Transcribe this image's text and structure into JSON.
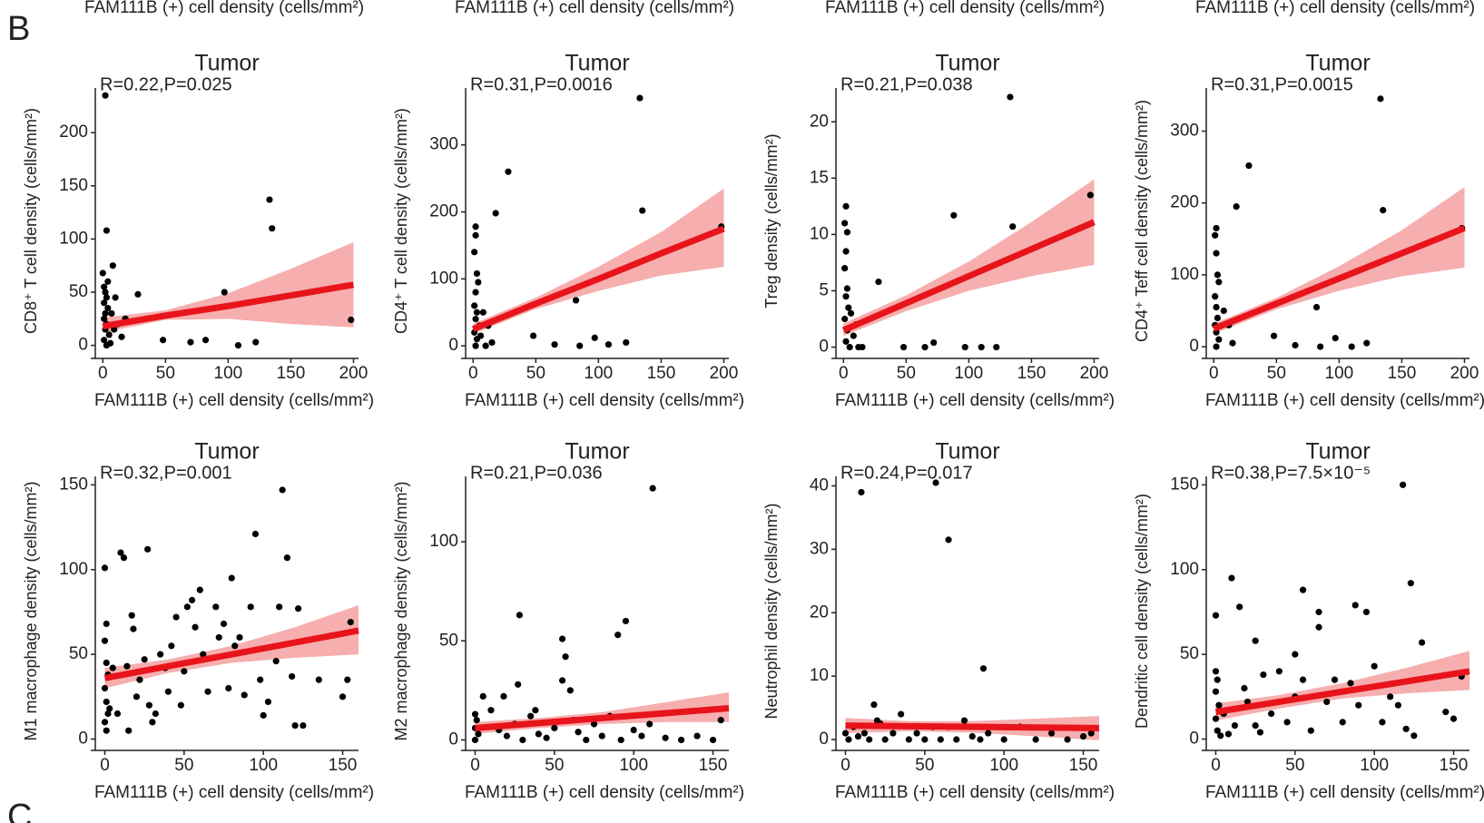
{
  "top_labels": [
    "FAM111B (+) cell density (cells/mm²)",
    "FAM111B (+) cell density (cells/mm²)",
    "FAM111B (+) cell density (cells/mm²)",
    "FAM111B (+) cell density (cells/mm²)"
  ],
  "panel_labels": [
    "B",
    "C"
  ],
  "chart_data": [
    {
      "type": "scatter",
      "title": "Tumor",
      "annotation": "R=0.22,P=0.025",
      "xlabel": "FAM111B (+) cell density (cells/mm²)",
      "ylabel": "CD8⁺ T cell density (cells/mm²)",
      "color": "#000000",
      "fit_color": "#e8141b",
      "band_color": "#f4a0a0",
      "x": [
        2,
        3,
        1,
        2,
        3,
        1,
        4,
        2,
        1,
        3,
        2,
        5,
        1,
        3,
        6,
        8,
        10,
        12,
        15,
        28,
        48,
        70,
        82,
        97,
        108,
        122,
        133,
        135,
        198,
        0,
        4,
        7,
        9,
        18
      ],
      "y": [
        235,
        108,
        55,
        50,
        45,
        40,
        35,
        30,
        25,
        20,
        15,
        10,
        5,
        0,
        2,
        75,
        45,
        20,
        8,
        48,
        5,
        3,
        5,
        50,
        0,
        3,
        137,
        110,
        24,
        68,
        60,
        30,
        15,
        25
      ],
      "fit": {
        "x": [
          0,
          50,
          100,
          150,
          200
        ],
        "y": [
          18,
          28,
          37,
          47,
          57
        ],
        "lower": [
          12,
          24,
          25,
          20,
          17
        ],
        "upper": [
          26,
          33,
          49,
          72,
          97
        ]
      },
      "xlim": [
        -6,
        204
      ],
      "ylim": [
        -8,
        242
      ],
      "xticks": [
        0,
        50,
        100,
        150,
        200
      ],
      "yticks": [
        0,
        50,
        100,
        150,
        200
      ]
    },
    {
      "type": "scatter",
      "title": "Tumor",
      "annotation": "R=0.31,P=0.0016",
      "xlabel": "FAM111B (+) cell density (cells/mm²)",
      "ylabel": "CD4⁺ T cell density (cells/mm²)",
      "color": "#000000",
      "fit_color": "#e8141b",
      "band_color": "#f4a0a0",
      "x": [
        133,
        28,
        18,
        135,
        198,
        2,
        2,
        1,
        3,
        4,
        2,
        1,
        3,
        2,
        5,
        1,
        3,
        2,
        8,
        12,
        15,
        6,
        48,
        65,
        82,
        97,
        108,
        122,
        85,
        10
      ],
      "y": [
        370,
        260,
        198,
        202,
        178,
        178,
        165,
        140,
        108,
        95,
        80,
        60,
        50,
        40,
        30,
        20,
        10,
        0,
        50,
        30,
        5,
        15,
        15,
        2,
        68,
        12,
        2,
        5,
        0,
        0
      ],
      "fit": {
        "x": [
          0,
          50,
          100,
          150,
          200
        ],
        "y": [
          25,
          63,
          100,
          138,
          175
        ],
        "lower": [
          18,
          55,
          82,
          105,
          118
        ],
        "upper": [
          33,
          72,
          118,
          170,
          235
        ]
      },
      "xlim": [
        -6,
        204
      ],
      "ylim": [
        -12,
        385
      ],
      "xticks": [
        0,
        50,
        100,
        150,
        200
      ],
      "yticks": [
        0,
        100,
        200,
        300
      ]
    },
    {
      "type": "scatter",
      "title": "Tumor",
      "annotation": "R=0.21,P=0.038",
      "xlabel": "FAM111B (+) cell density (cells/mm²)",
      "ylabel": "Treg density (cells/mm²)",
      "color": "#000000",
      "fit_color": "#e8141b",
      "band_color": "#f4a0a0",
      "x": [
        133,
        197,
        135,
        88,
        28,
        2,
        1,
        3,
        2,
        1,
        3,
        2,
        4,
        1,
        3,
        2,
        5,
        8,
        12,
        15,
        48,
        65,
        72,
        97,
        110,
        122,
        10,
        6
      ],
      "y": [
        22.2,
        13.5,
        10.7,
        11.7,
        5.8,
        12.5,
        11,
        10.2,
        8.5,
        7,
        5.2,
        4.5,
        3.5,
        2.5,
        1.5,
        0.5,
        0,
        1,
        0,
        0,
        0,
        0,
        0.4,
        0,
        0,
        0,
        2,
        3
      ],
      "fit": {
        "x": [
          0,
          50,
          100,
          150,
          200
        ],
        "y": [
          1.5,
          3.9,
          6.3,
          8.7,
          11.1
        ],
        "lower": [
          1.0,
          3.2,
          5.0,
          6.3,
          7.3
        ],
        "upper": [
          2.1,
          4.6,
          7.6,
          11.1,
          14.9
        ]
      },
      "xlim": [
        -6,
        204
      ],
      "ylim": [
        -0.6,
        23
      ],
      "xticks": [
        0,
        50,
        100,
        150,
        200
      ],
      "yticks": [
        0,
        5,
        10,
        15,
        20
      ]
    },
    {
      "type": "scatter",
      "title": "Tumor",
      "annotation": "R=0.31,P=0.0015",
      "xlabel": "FAM111B (+) cell density (cells/mm²)",
      "ylabel": "CD4⁺ Teff cell density (cells/mm²)",
      "color": "#000000",
      "fit_color": "#e8141b",
      "band_color": "#f4a0a0",
      "x": [
        133,
        28,
        18,
        135,
        198,
        2,
        1,
        2,
        3,
        4,
        1,
        2,
        3,
        1,
        2,
        4,
        2,
        8,
        12,
        15,
        48,
        65,
        82,
        97,
        110,
        122,
        85
      ],
      "y": [
        345,
        252,
        195,
        190,
        165,
        165,
        155,
        130,
        100,
        90,
        70,
        55,
        40,
        30,
        20,
        10,
        0,
        50,
        30,
        5,
        15,
        2,
        55,
        12,
        0,
        5,
        0
      ],
      "fit": {
        "x": [
          0,
          50,
          100,
          150,
          200
        ],
        "y": [
          25,
          60,
          95,
          130,
          165
        ],
        "lower": [
          18,
          52,
          78,
          98,
          110
        ],
        "upper": [
          32,
          68,
          112,
          162,
          222
        ]
      },
      "xlim": [
        -6,
        204
      ],
      "ylim": [
        -10,
        360
      ],
      "xticks": [
        0,
        50,
        100,
        150,
        200
      ],
      "yticks": [
        0,
        100,
        200,
        300
      ]
    },
    {
      "type": "scatter",
      "title": "Tumor",
      "annotation": "R=0.32,P=0.001",
      "xlabel": "FAM111B (+) cell density (cells/mm²)",
      "ylabel": "M1 macrophage density (cells/mm²)",
      "color": "#000000",
      "fit_color": "#e8141b",
      "band_color": "#f4a0a0",
      "x": [
        0,
        1,
        0,
        1,
        2,
        0,
        1,
        2,
        0,
        1,
        3,
        5,
        8,
        10,
        12,
        14,
        15,
        17,
        18,
        20,
        22,
        25,
        27,
        28,
        30,
        32,
        35,
        38,
        40,
        42,
        45,
        48,
        50,
        52,
        55,
        57,
        60,
        62,
        65,
        70,
        72,
        75,
        78,
        80,
        82,
        85,
        88,
        92,
        95,
        98,
        100,
        103,
        108,
        110,
        112,
        115,
        118,
        120,
        122,
        125,
        135,
        150,
        153,
        155
      ],
      "y": [
        101,
        68,
        58,
        45,
        38,
        30,
        22,
        15,
        10,
        5,
        18,
        42,
        15,
        110,
        107,
        43,
        5,
        73,
        65,
        25,
        35,
        47,
        112,
        20,
        10,
        15,
        50,
        42,
        28,
        55,
        72,
        20,
        40,
        78,
        82,
        66,
        88,
        50,
        28,
        78,
        60,
        68,
        30,
        95,
        55,
        60,
        26,
        78,
        121,
        35,
        14,
        22,
        46,
        78,
        147,
        107,
        37,
        8,
        77,
        8,
        35,
        25,
        35,
        69
      ],
      "fit": {
        "x": [
          0,
          40,
          80,
          120,
          160
        ],
        "y": [
          36,
          43,
          50,
          57,
          64
        ],
        "lower": [
          30,
          39,
          45,
          48,
          50
        ],
        "upper": [
          42,
          47,
          55,
          66,
          79
        ]
      },
      "xlim": [
        -6,
        160
      ],
      "ylim": [
        -4,
        155
      ],
      "xticks": [
        0,
        50,
        100,
        150
      ],
      "yticks": [
        0,
        50,
        100,
        150
      ]
    },
    {
      "type": "scatter",
      "title": "Tumor",
      "annotation": "R=0.21,P=0.036",
      "xlabel": "FAM111B (+) cell density (cells/mm²)",
      "ylabel": "M2 macrophage density (cells/mm²)",
      "color": "#000000",
      "fit_color": "#e8141b",
      "band_color": "#f4a0a0",
      "x": [
        112,
        28,
        95,
        90,
        55,
        57,
        55,
        27,
        60,
        0,
        1,
        0,
        2,
        0,
        5,
        10,
        15,
        20,
        25,
        30,
        35,
        40,
        45,
        50,
        65,
        70,
        75,
        80,
        85,
        92,
        100,
        105,
        110,
        120,
        130,
        140,
        150,
        155,
        18,
        38,
        62
      ],
      "y": [
        127,
        63,
        60,
        53,
        51,
        42,
        30,
        28,
        25,
        13,
        10,
        6,
        3,
        0,
        22,
        15,
        5,
        2,
        8,
        0,
        12,
        3,
        1,
        6,
        4,
        0,
        8,
        2,
        12,
        0,
        5,
        2,
        8,
        1,
        0,
        2,
        0,
        10,
        22,
        15,
        10
      ],
      "fit": {
        "x": [
          0,
          40,
          80,
          120,
          160
        ],
        "y": [
          6,
          8.5,
          11,
          13.5,
          16
        ],
        "lower": [
          3,
          6,
          8,
          9,
          9
        ],
        "upper": [
          9,
          11,
          14,
          19,
          24
        ]
      },
      "xlim": [
        -6,
        160
      ],
      "ylim": [
        -3,
        133
      ],
      "xticks": [
        0,
        50,
        100,
        150
      ],
      "yticks": [
        0,
        50,
        100
      ]
    },
    {
      "type": "scatter",
      "title": "Tumor",
      "annotation": "R=0.24,P=0.017",
      "xlabel": "FAM111B (+) cell density (cells/mm²)",
      "ylabel": "Neutrophil density (cells/mm²)",
      "color": "#000000",
      "fit_color": "#e8141b",
      "band_color": "#f4a0a0",
      "x": [
        10,
        57,
        65,
        87,
        18,
        0,
        2,
        5,
        8,
        12,
        15,
        20,
        25,
        30,
        35,
        40,
        45,
        50,
        55,
        60,
        65,
        70,
        75,
        80,
        85,
        90,
        100,
        110,
        120,
        130,
        140,
        150,
        155,
        22
      ],
      "y": [
        39,
        40.5,
        31.5,
        11.2,
        5.5,
        1,
        0,
        2,
        0.5,
        1,
        0,
        3,
        0,
        1,
        4,
        0,
        1,
        0,
        2,
        0,
        2,
        0,
        3,
        0.5,
        0,
        1,
        0,
        2,
        0,
        1,
        0,
        0.5,
        1,
        2.5
      ],
      "fit": {
        "x": [
          0,
          40,
          80,
          120,
          160
        ],
        "y": [
          2.2,
          2.1,
          2.0,
          1.9,
          1.8
        ],
        "lower": [
          1.0,
          1.3,
          1.1,
          0.5,
          -0.1
        ],
        "upper": [
          3.4,
          2.9,
          2.9,
          3.3,
          3.7
        ]
      },
      "xlim": [
        -6,
        160
      ],
      "ylim": [
        -1,
        41.5
      ],
      "xticks": [
        0,
        50,
        100,
        150
      ],
      "yticks": [
        0,
        10,
        20,
        30,
        40
      ]
    },
    {
      "type": "scatter",
      "title": "Tumor",
      "annotation": "R=0.38,P=7.5×10⁻⁵",
      "xlabel": "FAM111B (+) cell density (cells/mm²)",
      "ylabel": "Dendritic cell density (cells/mm²)",
      "color": "#000000",
      "fit_color": "#e8141b",
      "band_color": "#f4a0a0",
      "x": [
        118,
        123,
        10,
        15,
        0,
        65,
        88,
        95,
        55,
        65,
        25,
        50,
        130,
        0,
        1,
        0,
        2,
        0,
        1,
        5,
        8,
        12,
        18,
        20,
        25,
        30,
        35,
        40,
        45,
        50,
        55,
        60,
        70,
        75,
        80,
        85,
        90,
        100,
        105,
        110,
        115,
        120,
        125,
        145,
        150,
        155,
        3,
        28
      ],
      "y": [
        150,
        92,
        95,
        78,
        73,
        75,
        79,
        75,
        88,
        66,
        58,
        50,
        57,
        40,
        35,
        28,
        20,
        12,
        5,
        15,
        3,
        8,
        30,
        22,
        8,
        38,
        15,
        40,
        10,
        25,
        35,
        5,
        22,
        35,
        10,
        33,
        20,
        43,
        10,
        25,
        20,
        6,
        2,
        16,
        12,
        37,
        2,
        4
      ],
      "fit": {
        "x": [
          0,
          40,
          80,
          120,
          160
        ],
        "y": [
          16,
          22,
          28,
          34,
          40
        ],
        "lower": [
          11,
          18,
          24,
          27,
          29
        ],
        "upper": [
          21,
          26,
          33,
          42,
          52
        ]
      },
      "xlim": [
        -6,
        160
      ],
      "ylim": [
        -4,
        155
      ],
      "xticks": [
        0,
        50,
        100,
        150
      ],
      "yticks": [
        0,
        50,
        100,
        150
      ]
    }
  ]
}
